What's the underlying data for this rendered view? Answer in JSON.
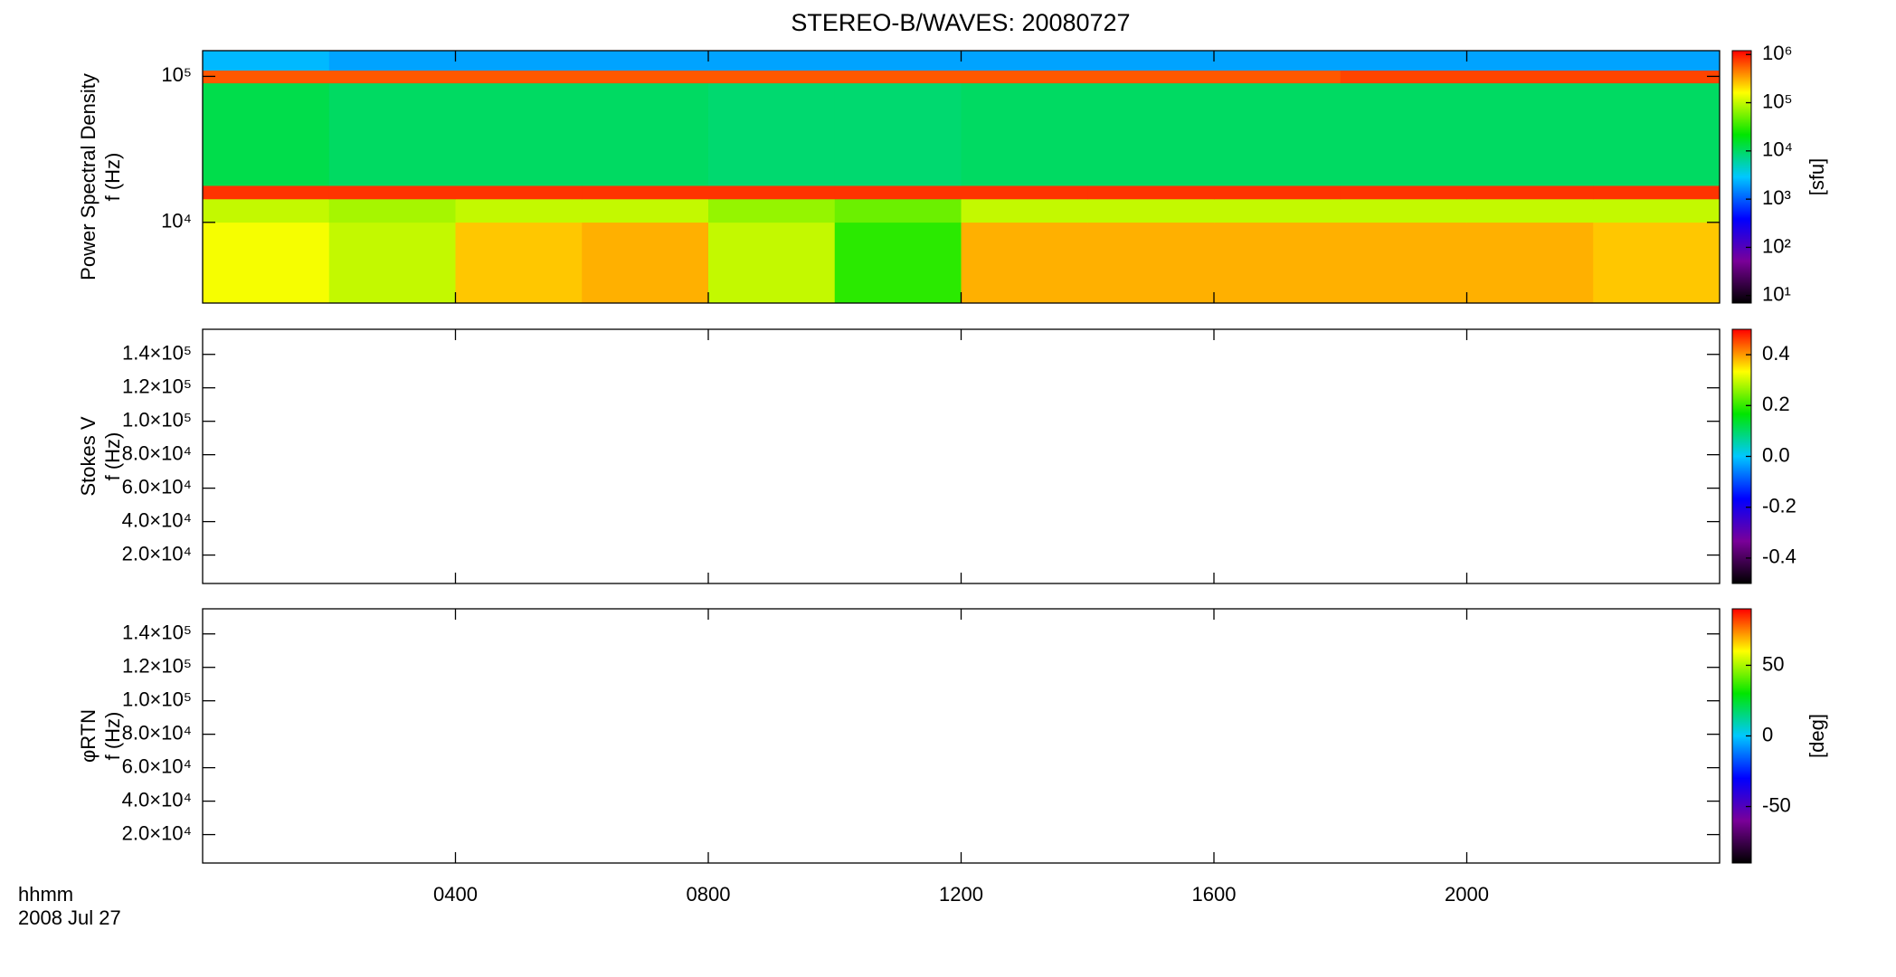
{
  "title": "STEREO-B/WAVES: 20080727",
  "xlabel": "hhmm",
  "date": "2008 Jul 27",
  "colormap": [
    "#000000",
    "#7a0099",
    "#0000ff",
    "#00c8ff",
    "#00e600",
    "#ffff00",
    "#ff0000"
  ],
  "chart_data": [
    {
      "type": "heatmap",
      "ylabel": [
        "Power Spectral Density",
        "f (Hz)"
      ],
      "xlim": [
        0,
        24
      ],
      "ylim": [
        2800,
        150000
      ],
      "ylog": true,
      "yticks": [
        {
          "value": 10000,
          "label": "10⁴"
        },
        {
          "value": 100000,
          "label": "10⁵"
        }
      ],
      "x_edges": [
        0,
        2,
        4,
        6,
        8,
        10,
        12,
        14,
        16,
        18,
        20,
        22,
        24
      ],
      "y_edges": [
        2800,
        10000,
        14450,
        17860,
        90000,
        110000,
        150000
      ],
      "z": [
        [
          150000,
          100000,
          250000,
          300000,
          100000,
          30000,
          300000,
          300000,
          300000,
          300000,
          300000,
          250000
        ],
        [
          100000,
          80000,
          100000,
          100000,
          70000,
          50000,
          100000,
          100000,
          100000,
          100000,
          100000,
          100000
        ],
        [
          800000,
          800000,
          800000,
          800000,
          800000,
          800000,
          800000,
          800000,
          800000,
          800000,
          800000,
          800000
        ],
        [
          12000,
          10000,
          10000,
          10000,
          9000,
          9000,
          10000,
          10000,
          10000,
          10000,
          10000,
          10000
        ],
        [
          600000,
          600000,
          600000,
          600000,
          600000,
          600000,
          600000,
          600000,
          600000,
          700000,
          700000,
          700000
        ],
        [
          2500,
          2000,
          2000,
          2000,
          2000,
          2000,
          2000,
          2000,
          2000,
          2000,
          2000,
          2000
        ]
      ],
      "zlim": [
        7,
        1200000
      ],
      "zlog": true,
      "zticks": [
        {
          "value": 10,
          "label": "10¹"
        },
        {
          "value": 100,
          "label": "10²"
        },
        {
          "value": 1000,
          "label": "10³"
        },
        {
          "value": 10000,
          "label": "10⁴"
        },
        {
          "value": 100000,
          "label": "10⁵"
        },
        {
          "value": 1000000,
          "label": "10⁶"
        }
      ],
      "zlabel": "[sfu]"
    },
    {
      "type": "heatmap",
      "ylabel": [
        "Stokes V",
        "f (Hz)"
      ],
      "xlim": [
        0,
        24
      ],
      "ylim": [
        3000,
        155000
      ],
      "ylog": false,
      "yticks": [
        {
          "value": 20000,
          "label": "2.0×10⁴"
        },
        {
          "value": 40000,
          "label": "4.0×10⁴"
        },
        {
          "value": 60000,
          "label": "6.0×10⁴"
        },
        {
          "value": 80000,
          "label": "8.0×10⁴"
        },
        {
          "value": 100000,
          "label": "1.0×10⁵"
        },
        {
          "value": 120000,
          "label": "1.2×10⁵"
        },
        {
          "value": 140000,
          "label": "1.4×10⁵"
        }
      ],
      "zlim": [
        -0.5,
        0.5
      ],
      "zlog": false,
      "zticks": [
        -0.4,
        -0.2,
        {
          "value": 0,
          "label": "0.0"
        },
        0.2,
        0.4
      ]
    },
    {
      "type": "heatmap",
      "ylabel": [
        "φRTN",
        "f (Hz)"
      ],
      "xlim": [
        0,
        24
      ],
      "xticks": [
        {
          "value": 4,
          "label": "0400"
        },
        {
          "value": 8,
          "label": "0800"
        },
        {
          "value": 12,
          "label": "1200"
        },
        {
          "value": 16,
          "label": "1600"
        },
        {
          "value": 20,
          "label": "2000"
        }
      ],
      "ylim": [
        3000,
        155000
      ],
      "ylog": false,
      "yticks": [
        {
          "value": 20000,
          "label": "2.0×10⁴"
        },
        {
          "value": 40000,
          "label": "4.0×10⁴"
        },
        {
          "value": 60000,
          "label": "6.0×10⁴"
        },
        {
          "value": 80000,
          "label": "8.0×10⁴"
        },
        {
          "value": 100000,
          "label": "1.0×10⁵"
        },
        {
          "value": 120000,
          "label": "1.2×10⁵"
        },
        {
          "value": 140000,
          "label": "1.4×10⁵"
        }
      ],
      "zlim": [
        -90,
        90
      ],
      "zlog": false,
      "zticks": [
        -50,
        0,
        50
      ],
      "zlabel": "[deg]"
    }
  ]
}
